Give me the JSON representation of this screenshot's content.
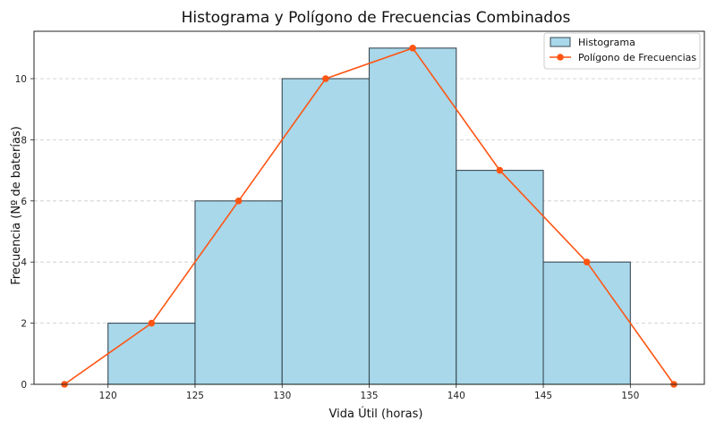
{
  "chart_data": {
    "type": "bar",
    "title": "Histograma y Polígono de Frecuencias Combinados",
    "xlabel": "Vida Útil (horas)",
    "ylabel": "Frecuencia (Nº de baterías)",
    "xlim": [
      115.75,
      154.25
    ],
    "ylim": [
      0,
      11.55
    ],
    "x_ticks": [
      120,
      125,
      130,
      135,
      140,
      145,
      150
    ],
    "y_ticks": [
      0,
      2,
      4,
      6,
      8,
      10
    ],
    "grid": {
      "y": true,
      "x": false,
      "style": "dashed"
    },
    "legend_position": "top-right",
    "bins": [
      {
        "start": 120,
        "end": 125,
        "value": 2
      },
      {
        "start": 125,
        "end": 130,
        "value": 6
      },
      {
        "start": 130,
        "end": 135,
        "value": 10
      },
      {
        "start": 135,
        "end": 140,
        "value": 11
      },
      {
        "start": 140,
        "end": 145,
        "value": 7
      },
      {
        "start": 145,
        "end": 150,
        "value": 4
      }
    ],
    "series": [
      {
        "name": "Histograma",
        "type": "bar",
        "color": "#a8d8ea",
        "edge_color": "#3a4a55"
      },
      {
        "name": "Polígono de Frecuencias",
        "type": "line",
        "color": "#ff5513",
        "x": [
          117.5,
          122.5,
          127.5,
          132.5,
          137.5,
          142.5,
          147.5,
          152.5
        ],
        "y": [
          0,
          2,
          6,
          10,
          11,
          7,
          4,
          0
        ]
      }
    ]
  }
}
